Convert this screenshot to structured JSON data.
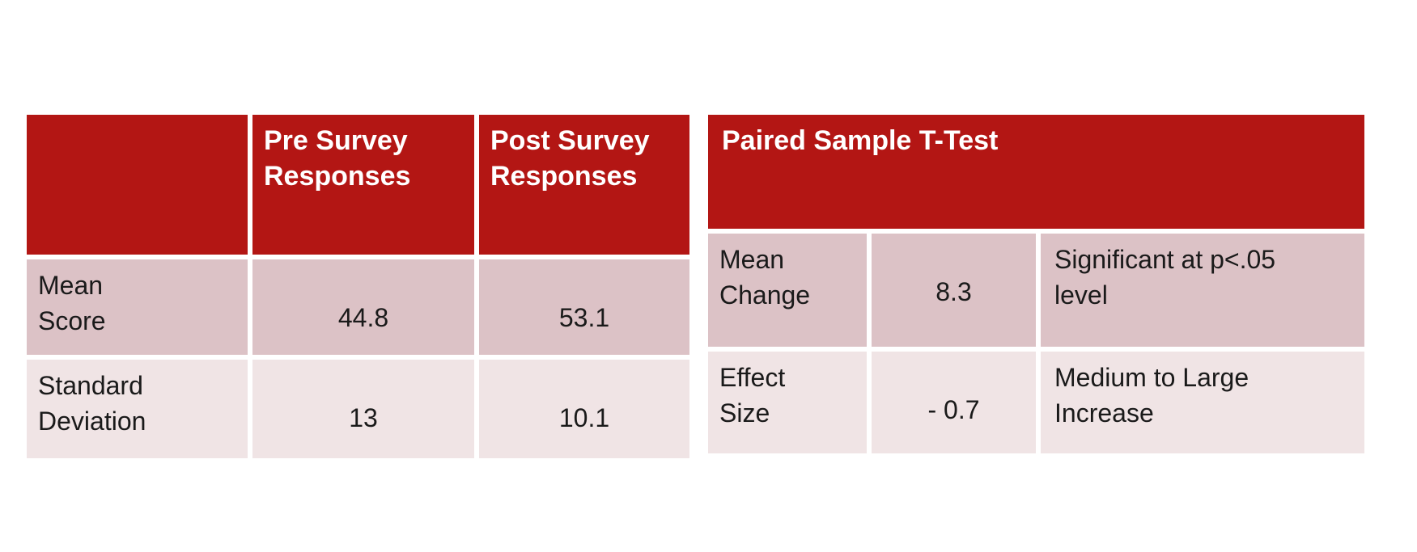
{
  "colors": {
    "header_red": "#b31614",
    "row_dark": "#dcc2c6",
    "row_light": "#f0e4e5",
    "header_text": "#ffffff",
    "body_text": "#1a1a1a",
    "background": "#ffffff"
  },
  "left_table": {
    "header_empty": "",
    "header_pre": "Pre Survey\nResponses",
    "header_post": "Post Survey\nResponses",
    "rows": [
      {
        "label": "Mean\nScore",
        "values": [
          "44.8",
          "53.1"
        ]
      },
      {
        "label": "Standard\nDeviation",
        "values": [
          "13",
          "10.1"
        ]
      }
    ]
  },
  "right_table": {
    "title": "Paired Sample T-Test",
    "rows": [
      {
        "label": "Mean\nChange",
        "value": "8.3",
        "note": "Significant at p<.05\nlevel"
      },
      {
        "label": "Effect\nSize",
        "value": "- 0.7",
        "note": "Medium to Large\nIncrease"
      }
    ]
  }
}
